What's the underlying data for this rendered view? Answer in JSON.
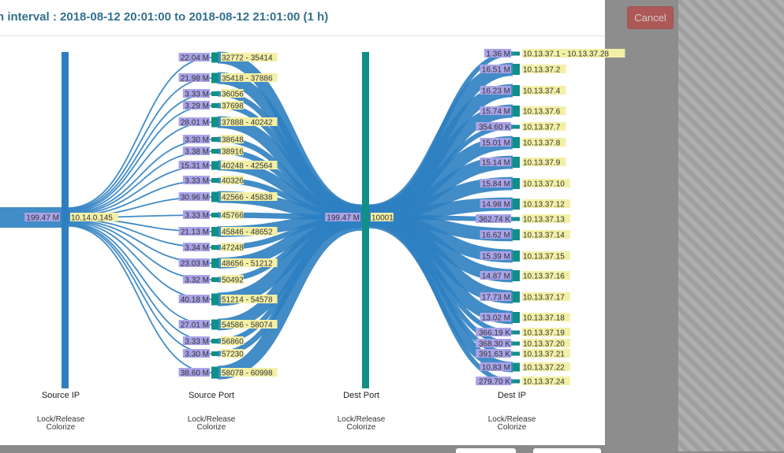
{
  "modal": {
    "title": "n interval : 2018-08-12 20:01:00 to 2018-08-12 21:01:00 (1 h)",
    "cancel_label": "Cancel"
  },
  "colors": {
    "link": "#2e7fc1",
    "source_bar": "#2e7fc1",
    "dest_bar": "#0f8f86",
    "value_label_bg": "#a9a3e8",
    "name_label_bg": "#f3f0a6"
  },
  "axes": [
    {
      "label": "Source IP",
      "control_lock": "Lock/Release",
      "control_colorize": "Colorize"
    },
    {
      "label": "Source Port",
      "control_lock": "Lock/Release",
      "control_colorize": "Colorize"
    },
    {
      "label": "Dest Port",
      "control_lock": "Lock/Release",
      "control_colorize": "Colorize"
    },
    {
      "label": "Dest IP",
      "control_lock": "Lock/Release",
      "control_colorize": "Colorize"
    }
  ],
  "source_ip": [
    {
      "value": "199.47 M",
      "name": "10.14.0.145"
    }
  ],
  "source_ports": [
    {
      "value": "22.04 M",
      "name": "32772 - 35414"
    },
    {
      "value": "21.98 M",
      "name": "35418 - 37886"
    },
    {
      "value": "3.33 M",
      "name": "36056"
    },
    {
      "value": "3.29 M",
      "name": "37698"
    },
    {
      "value": "28.01 M",
      "name": "37888 - 40242"
    },
    {
      "value": "3.30 M",
      "name": "38648"
    },
    {
      "value": "3.38 M",
      "name": "38916"
    },
    {
      "value": "15.31 M",
      "name": "40248 - 42564"
    },
    {
      "value": "3.33 M",
      "name": "40326"
    },
    {
      "value": "30.96 M",
      "name": "42566 - 45838"
    },
    {
      "value": "3.33 M",
      "name": "45766"
    },
    {
      "value": "21.13 M",
      "name": "45846 - 48652"
    },
    {
      "value": "3.34 M",
      "name": "47248"
    },
    {
      "value": "23.03 M",
      "name": "48656 - 51212"
    },
    {
      "value": "3.32 M",
      "name": "50492"
    },
    {
      "value": "40.18 M",
      "name": "51214 - 54578"
    },
    {
      "value": "27.01 M",
      "name": "54586 - 58074"
    },
    {
      "value": "3.33 M",
      "name": "56860"
    },
    {
      "value": "3.30 M",
      "name": "57230"
    },
    {
      "value": "38.60 M",
      "name": "58078 - 60998"
    }
  ],
  "dest_port": [
    {
      "value": "199.47 M",
      "name": "10001"
    }
  ],
  "dest_ips": [
    {
      "value": "1.36 M",
      "name": "10.13.37.1 - 10.13.37.28"
    },
    {
      "value": "16.51 M",
      "name": "10.13.37.2"
    },
    {
      "value": "16.23 M",
      "name": "10.13.37.4"
    },
    {
      "value": "15.74 M",
      "name": "10.13.37.6"
    },
    {
      "value": "354.60 K",
      "name": "10.13.37.7"
    },
    {
      "value": "15.01 M",
      "name": "10.13.37.8"
    },
    {
      "value": "15.14 M",
      "name": "10.13.37.9"
    },
    {
      "value": "15.84 M",
      "name": "10.13.37.10"
    },
    {
      "value": "14.98 M",
      "name": "10.13.37.12"
    },
    {
      "value": "362.74 K",
      "name": "10.13.37.13"
    },
    {
      "value": "16.62 M",
      "name": "10.13.37.14"
    },
    {
      "value": "15.39 M",
      "name": "10.13.37.15"
    },
    {
      "value": "14.87 M",
      "name": "10.13.37.16"
    },
    {
      "value": "17.73 M",
      "name": "10.13.37.17"
    },
    {
      "value": "13.02 M",
      "name": "10.13.37.18"
    },
    {
      "value": "366.19 K",
      "name": "10.13.37.19"
    },
    {
      "value": "368.30 K",
      "name": "10.13.37.20"
    },
    {
      "value": "391.63 K",
      "name": "10.13.37.21"
    },
    {
      "value": "10.83 M",
      "name": "10.13.37.22"
    },
    {
      "value": "279.70 K",
      "name": "10.13.37.24"
    }
  ]
}
